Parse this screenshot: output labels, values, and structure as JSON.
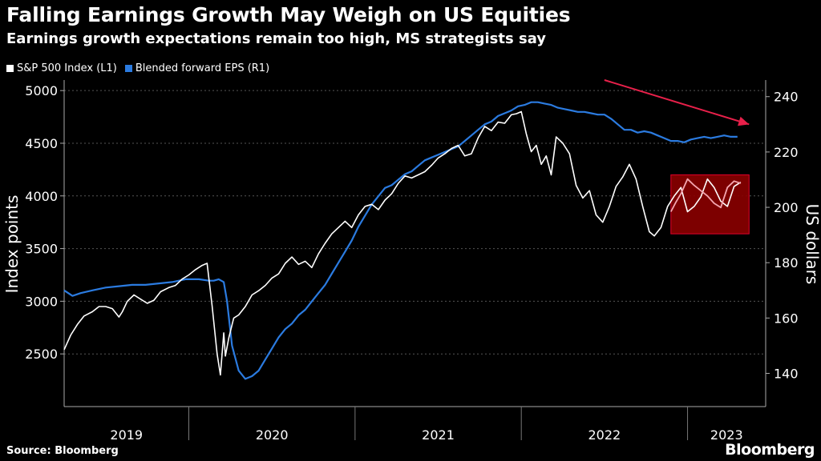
{
  "chart_data": {
    "type": "line",
    "title": "Falling Earnings Growth May Weigh on US Equities",
    "subtitle": "Earnings growth expectations remain too high, MS strategists say",
    "x_categories": [
      "2019",
      "2020",
      "2021",
      "2022",
      "2023"
    ],
    "xlim": [
      2019.25,
      2023.47
    ],
    "ylabel_left": "Index points",
    "ylabel_right": "US dollars",
    "ylim_left": [
      2000,
      5100
    ],
    "ylim_right": [
      128,
      246
    ],
    "yticks_left": [
      "2500",
      "3000",
      "3500",
      "4000",
      "4500",
      "5000"
    ],
    "yticks_right": [
      "140",
      "160",
      "180",
      "200",
      "220",
      "240"
    ],
    "yticks_left_values": [
      2500,
      3000,
      3500,
      4000,
      4500,
      5000
    ],
    "yticks_right_values": [
      140,
      160,
      180,
      200,
      220,
      240
    ],
    "grid": true,
    "series": [
      {
        "name": "S&P 500 Index (L1)",
        "axis": "left",
        "color": "#ffffff",
        "x": [
          2019.25,
          2019.29,
          2019.33,
          2019.37,
          2019.42,
          2019.46,
          2019.5,
          2019.54,
          2019.58,
          2019.6,
          2019.63,
          2019.67,
          2019.71,
          2019.75,
          2019.79,
          2019.83,
          2019.88,
          2019.92,
          2019.96,
          2020.0,
          2020.04,
          2020.08,
          2020.11,
          2020.14,
          2020.17,
          2020.19,
          2020.21,
          2020.22,
          2020.24,
          2020.27,
          2020.3,
          2020.34,
          2020.38,
          2020.42,
          2020.46,
          2020.5,
          2020.54,
          2020.58,
          2020.62,
          2020.66,
          2020.7,
          2020.74,
          2020.78,
          2020.82,
          2020.86,
          2020.9,
          2020.94,
          2020.98,
          2021.02,
          2021.06,
          2021.1,
          2021.14,
          2021.18,
          2021.22,
          2021.26,
          2021.3,
          2021.34,
          2021.38,
          2021.42,
          2021.46,
          2021.5,
          2021.54,
          2021.58,
          2021.62,
          2021.66,
          2021.7,
          2021.74,
          2021.78,
          2021.82,
          2021.86,
          2021.9,
          2021.94,
          2021.97,
          2022.0,
          2022.03,
          2022.06,
          2022.09,
          2022.12,
          2022.15,
          2022.18,
          2022.21,
          2022.25,
          2022.29,
          2022.33,
          2022.37,
          2022.41,
          2022.45,
          2022.49,
          2022.53,
          2022.57,
          2022.61,
          2022.65,
          2022.69,
          2022.73,
          2022.77,
          2022.8,
          2022.84,
          2022.88,
          2022.92,
          2022.96,
          2023.0,
          2023.04,
          2023.08,
          2023.12,
          2023.16,
          2023.2,
          2023.24,
          2023.28,
          2023.32
        ],
        "values": [
          2540,
          2680,
          2780,
          2860,
          2900,
          2950,
          2950,
          2930,
          2850,
          2900,
          3000,
          3060,
          3020,
          2980,
          3010,
          3090,
          3130,
          3150,
          3210,
          3250,
          3300,
          3340,
          3360,
          2960,
          2500,
          2300,
          2700,
          2480,
          2650,
          2840,
          2870,
          2950,
          3060,
          3100,
          3150,
          3220,
          3260,
          3360,
          3420,
          3350,
          3380,
          3320,
          3450,
          3550,
          3640,
          3700,
          3760,
          3700,
          3820,
          3900,
          3920,
          3870,
          3960,
          4020,
          4120,
          4190,
          4170,
          4200,
          4230,
          4290,
          4360,
          4400,
          4450,
          4480,
          4380,
          4400,
          4550,
          4660,
          4620,
          4700,
          4690,
          4770,
          4780,
          4800,
          4590,
          4420,
          4480,
          4300,
          4380,
          4200,
          4560,
          4500,
          4400,
          4100,
          3980,
          4050,
          3820,
          3750,
          3900,
          4090,
          4180,
          4300,
          4160,
          3900,
          3660,
          3620,
          3700,
          3900,
          4000,
          4080,
          3850,
          3900,
          3990,
          4160,
          4080,
          3950,
          3900,
          4090,
          4130
        ],
        "highlight": {
          "x": [
            2022.9,
            2022.93,
            2022.96,
            2023.0,
            2023.04,
            2023.08,
            2023.12,
            2023.16,
            2023.2,
            2023.24,
            2023.28,
            2023.32
          ],
          "values": [
            3850,
            3940,
            4020,
            4160,
            4100,
            4050,
            4000,
            3930,
            3890,
            4080,
            4140,
            4120
          ]
        }
      },
      {
        "name": "Blended forward EPS (R1)",
        "axis": "right",
        "color": "#2b7be0",
        "x": [
          2019.25,
          2019.3,
          2019.35,
          2019.42,
          2019.5,
          2019.58,
          2019.66,
          2019.74,
          2019.82,
          2019.9,
          2019.98,
          2020.06,
          2020.12,
          2020.15,
          2020.18,
          2020.21,
          2020.23,
          2020.26,
          2020.3,
          2020.34,
          2020.38,
          2020.42,
          2020.46,
          2020.5,
          2020.54,
          2020.58,
          2020.62,
          2020.66,
          2020.7,
          2020.74,
          2020.78,
          2020.82,
          2020.86,
          2020.9,
          2020.94,
          2020.98,
          2021.02,
          2021.06,
          2021.1,
          2021.14,
          2021.18,
          2021.22,
          2021.26,
          2021.3,
          2021.34,
          2021.38,
          2021.42,
          2021.46,
          2021.5,
          2021.54,
          2021.58,
          2021.62,
          2021.66,
          2021.7,
          2021.74,
          2021.78,
          2021.82,
          2021.86,
          2021.9,
          2021.94,
          2021.98,
          2022.02,
          2022.06,
          2022.1,
          2022.14,
          2022.18,
          2022.22,
          2022.26,
          2022.3,
          2022.34,
          2022.38,
          2022.42,
          2022.46,
          2022.5,
          2022.54,
          2022.58,
          2022.62,
          2022.66,
          2022.7,
          2022.74,
          2022.78,
          2022.82,
          2022.86,
          2022.9,
          2022.94,
          2022.98,
          2023.02,
          2023.06,
          2023.1,
          2023.14,
          2023.18,
          2023.22,
          2023.26,
          2023.3
        ],
        "values": [
          170,
          168,
          169,
          170,
          171,
          171.5,
          172,
          172,
          172.5,
          173,
          174,
          174,
          173.5,
          173.5,
          174,
          173,
          166,
          150,
          141,
          138,
          139,
          141,
          145,
          149,
          153,
          156,
          158,
          161,
          163,
          166,
          169,
          172,
          176,
          180,
          184,
          188,
          193,
          197,
          201,
          204,
          207,
          208,
          210,
          212,
          213,
          215,
          217,
          218,
          219,
          220,
          221,
          222,
          224,
          226,
          228,
          230,
          231,
          233,
          234,
          235,
          236.5,
          237,
          238,
          238,
          237.5,
          237,
          236,
          235.5,
          235,
          234.5,
          234.5,
          234,
          233.5,
          233.5,
          232,
          230,
          228,
          228,
          227,
          227.5,
          227,
          226,
          225,
          224,
          224,
          223.5,
          224.5,
          225,
          225.5,
          225,
          225.5,
          226,
          225.5,
          225.5
        ]
      }
    ],
    "annotations": [
      {
        "type": "arrow",
        "color": "#e8204a",
        "from": [
          2022.5,
          246
        ],
        "to": [
          2023.37,
          230
        ]
      },
      {
        "type": "box",
        "color": "#8b0000",
        "x_range": [
          2022.9,
          2023.37
        ],
        "y_range": [
          3640,
          4200
        ],
        "axis": "left"
      }
    ]
  },
  "legend": [
    {
      "label": "S&P 500 Index (L1)",
      "color": "#ffffff"
    },
    {
      "label": "Blended forward EPS (R1)",
      "color": "#2b7be0"
    }
  ],
  "source": "Source: Bloomberg",
  "brand": "Bloomberg"
}
